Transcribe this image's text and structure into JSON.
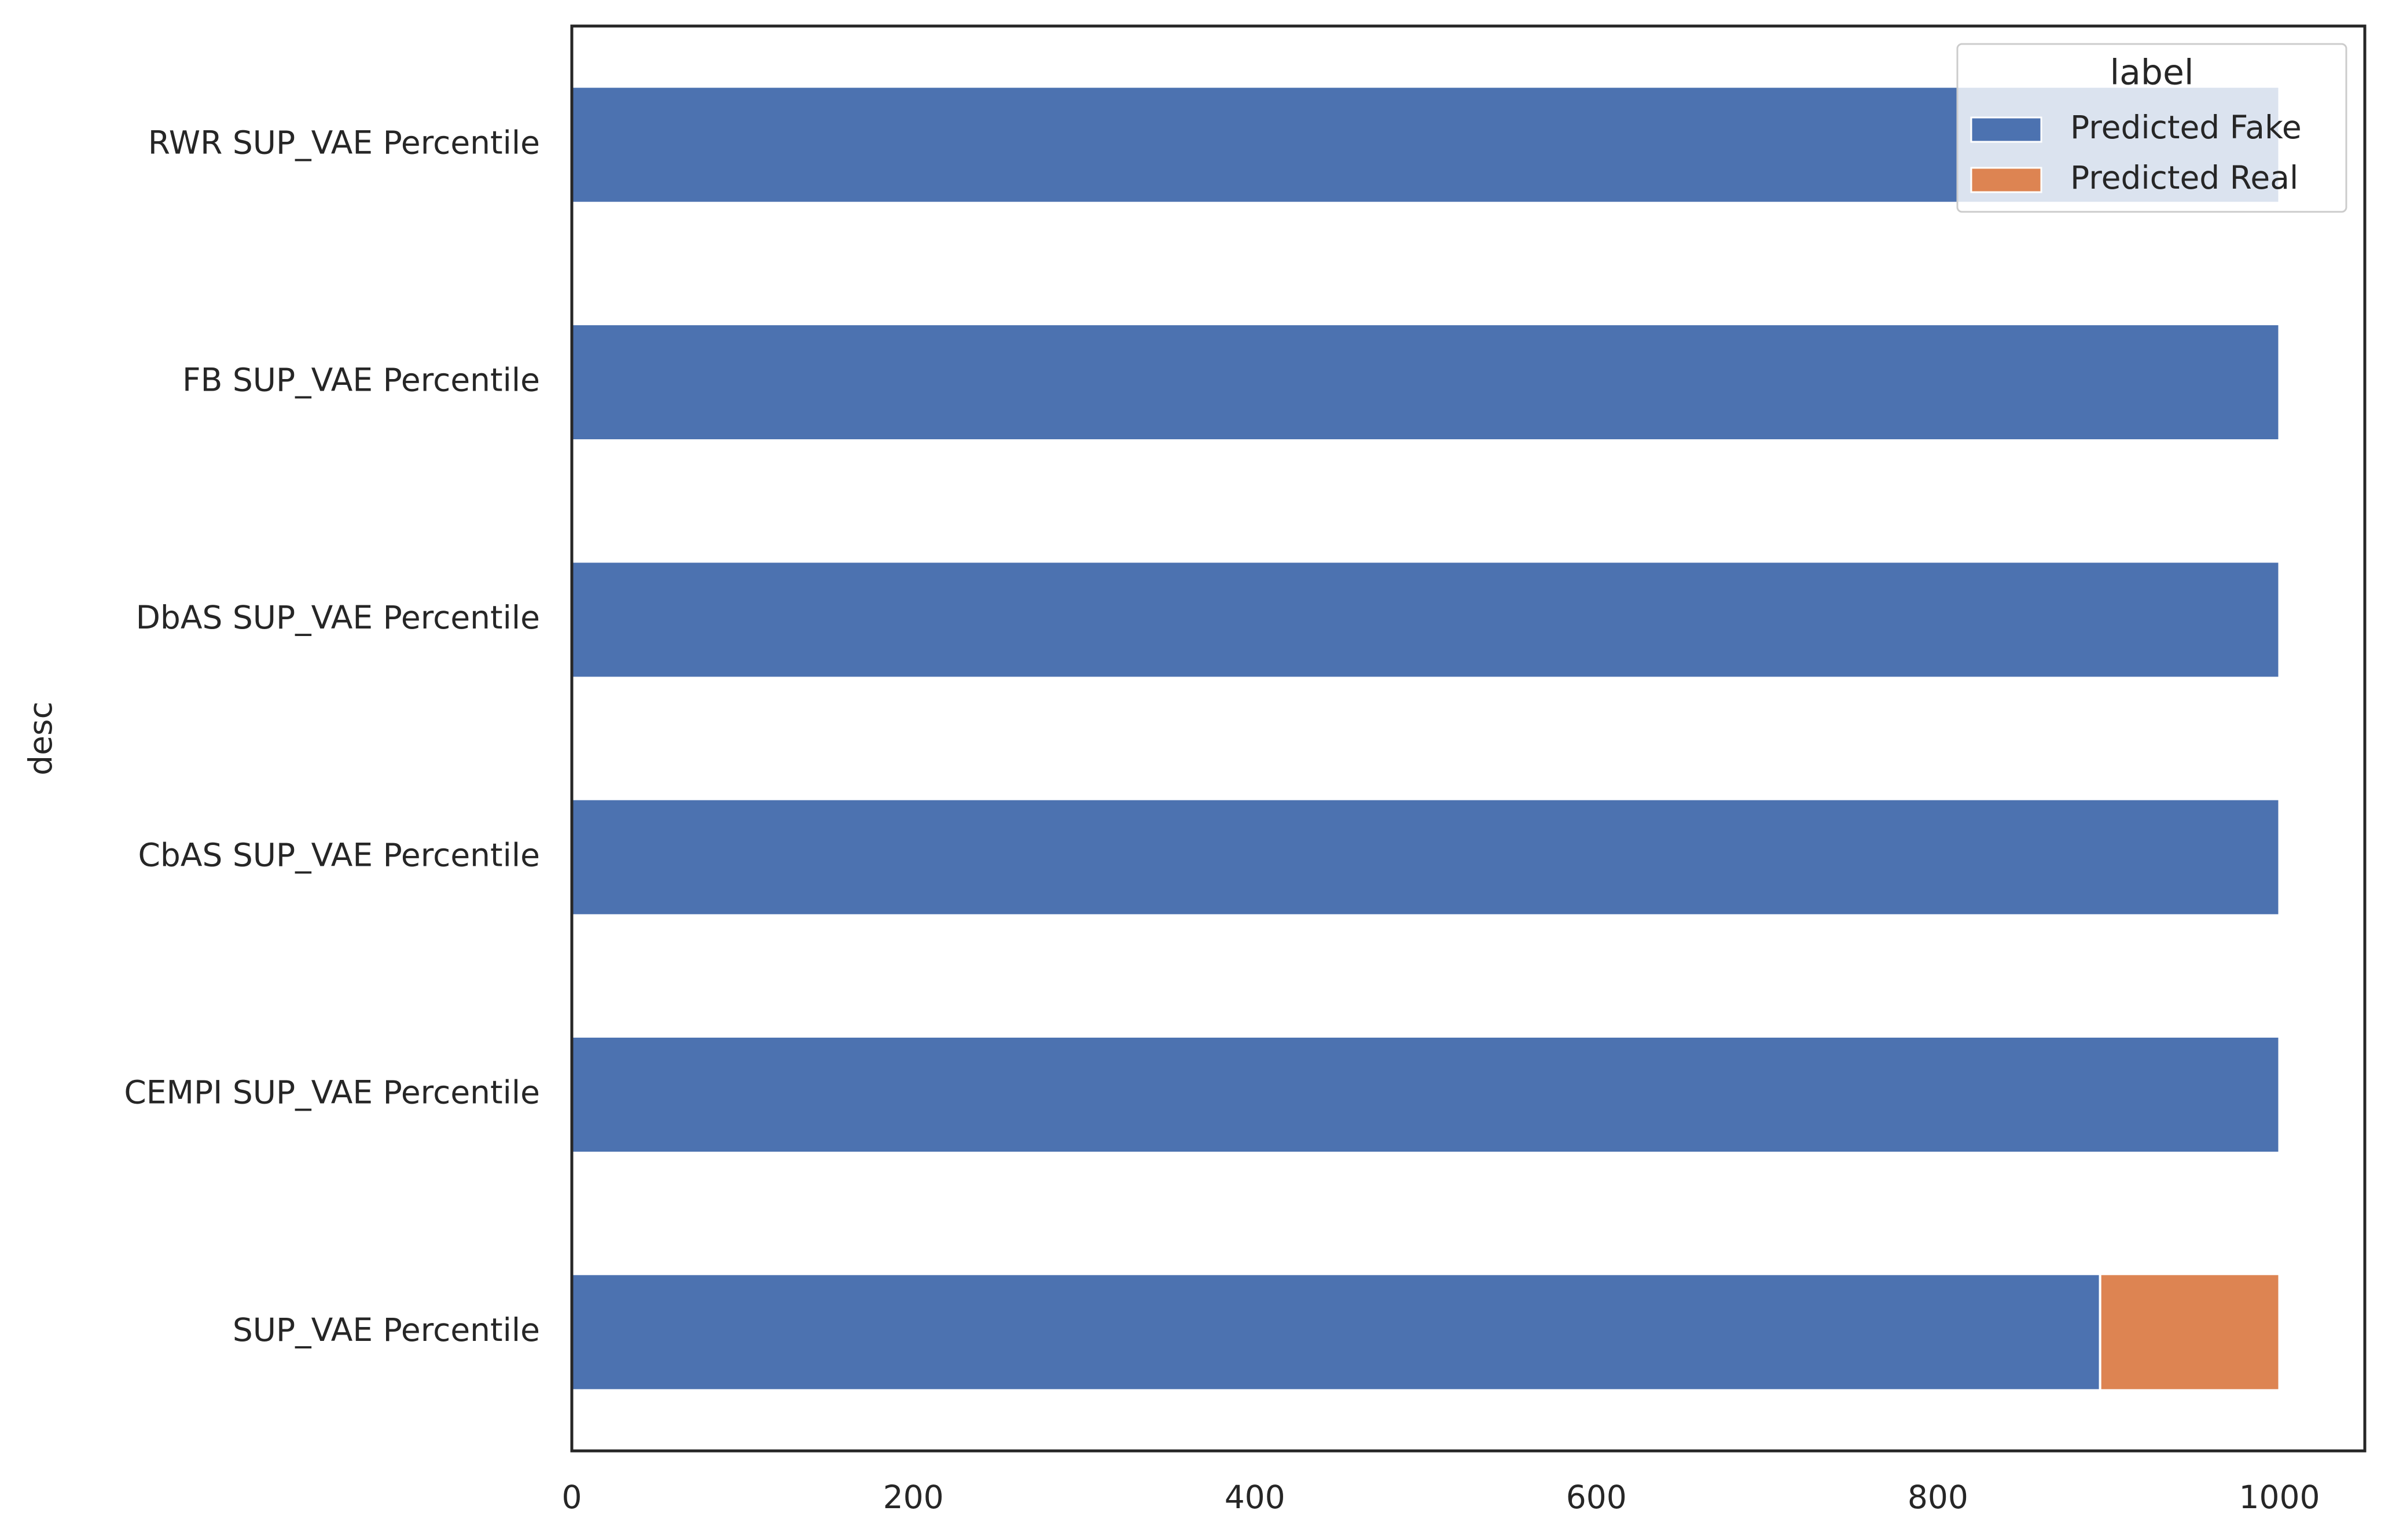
{
  "chart_data": {
    "type": "barh_stacked",
    "y_label": "desc",
    "categories": [
      "SUP_VAE Percentile",
      "CEMPI SUP_VAE Percentile",
      "CbAS SUP_VAE Percentile",
      "DbAS SUP_VAE Percentile",
      "FB SUP_VAE Percentile",
      "RWR SUP_VAE Percentile"
    ],
    "series": [
      {
        "name": "Predicted Fake",
        "color": "#4c72b0",
        "values": [
          895,
          1000,
          1000,
          1000,
          1000,
          1000
        ]
      },
      {
        "name": "Predicted Real",
        "color": "#dd8452",
        "values": [
          105,
          0,
          0,
          0,
          0,
          0
        ]
      }
    ],
    "legend_title": "label",
    "legend": "upper right",
    "xlim": [
      0,
      1050
    ],
    "xticks": [
      0,
      200,
      400,
      600,
      800,
      1000
    ],
    "grid": false
  }
}
